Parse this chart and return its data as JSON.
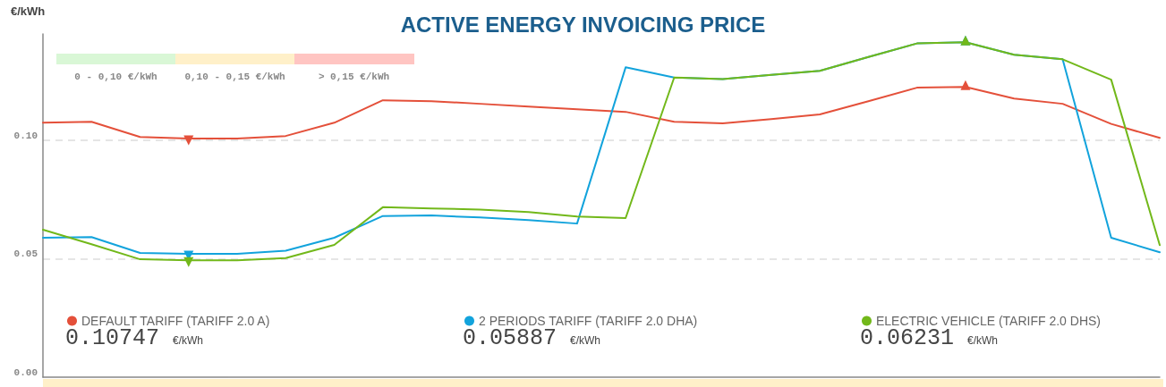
{
  "chart_data": {
    "type": "line",
    "title": "ACTIVE ENERGY INVOICING PRICE",
    "ylabel": "€/kWh",
    "categories": [
      null,
      null,
      null,
      null,
      null,
      null,
      null,
      null,
      null,
      null,
      null,
      null,
      null,
      null,
      null,
      null,
      null,
      null,
      null,
      null,
      null,
      null,
      null,
      null
    ],
    "series": [
      {
        "name": "DEFAULT TARIFF (TARIFF 2.0 A)",
        "color": "#e4503a",
        "values": [
          0.1075,
          0.1079,
          0.1015,
          0.1008,
          0.1008,
          0.1019,
          0.1075,
          0.117,
          0.1166,
          0.1155,
          0.1143,
          0.1132,
          0.1121,
          0.1079,
          0.1072,
          0.109,
          0.111,
          0.1166,
          0.1223,
          0.1226,
          0.1177,
          0.1155,
          0.107,
          0.1011
        ]
      },
      {
        "name": "2 PERIODS TARIFF (TARIFF 2.0 DHA)",
        "color": "#12a3dc",
        "values": [
          0.0589,
          0.0592,
          0.0525,
          0.0521,
          0.0521,
          0.0534,
          0.0589,
          0.0681,
          0.0683,
          0.0675,
          0.0664,
          0.0649,
          0.1309,
          0.1266,
          0.1259,
          0.1277,
          0.1294,
          0.1353,
          0.141,
          0.1415,
          0.1362,
          0.1343,
          0.0589,
          0.0528
        ]
      },
      {
        "name": "ELECTRIC VEHICLE (TARIFF 2.0 DHS)",
        "color": "#72b81a",
        "values": [
          0.0623,
          0.0562,
          0.0498,
          0.0494,
          0.0494,
          0.0503,
          0.0559,
          0.0718,
          0.0713,
          0.0708,
          0.0698,
          0.0679,
          0.0672,
          0.1266,
          0.1259,
          0.1277,
          0.1294,
          0.1353,
          0.141,
          0.1415,
          0.1362,
          0.1343,
          0.1257,
          0.0558
        ]
      }
    ],
    "ylim": [
      0,
      0.145
    ],
    "yticks": [
      {
        "value": 0,
        "label": "0.00"
      },
      {
        "value": 0.05,
        "label": "0.05"
      },
      {
        "value": 0.1,
        "label": "0.10"
      }
    ],
    "annotations": [
      "0 - 0,10 €/kWh",
      "0,10 - 0,15 €/kWh",
      "> 0,15 €/kWh",
      "0.10747 €/kWh",
      "0.05887 €/kWh",
      "0.06231 €/kWh"
    ],
    "grid": "y",
    "legend": "bottom",
    "marker": "none",
    "line_style": "solid"
  }
}
